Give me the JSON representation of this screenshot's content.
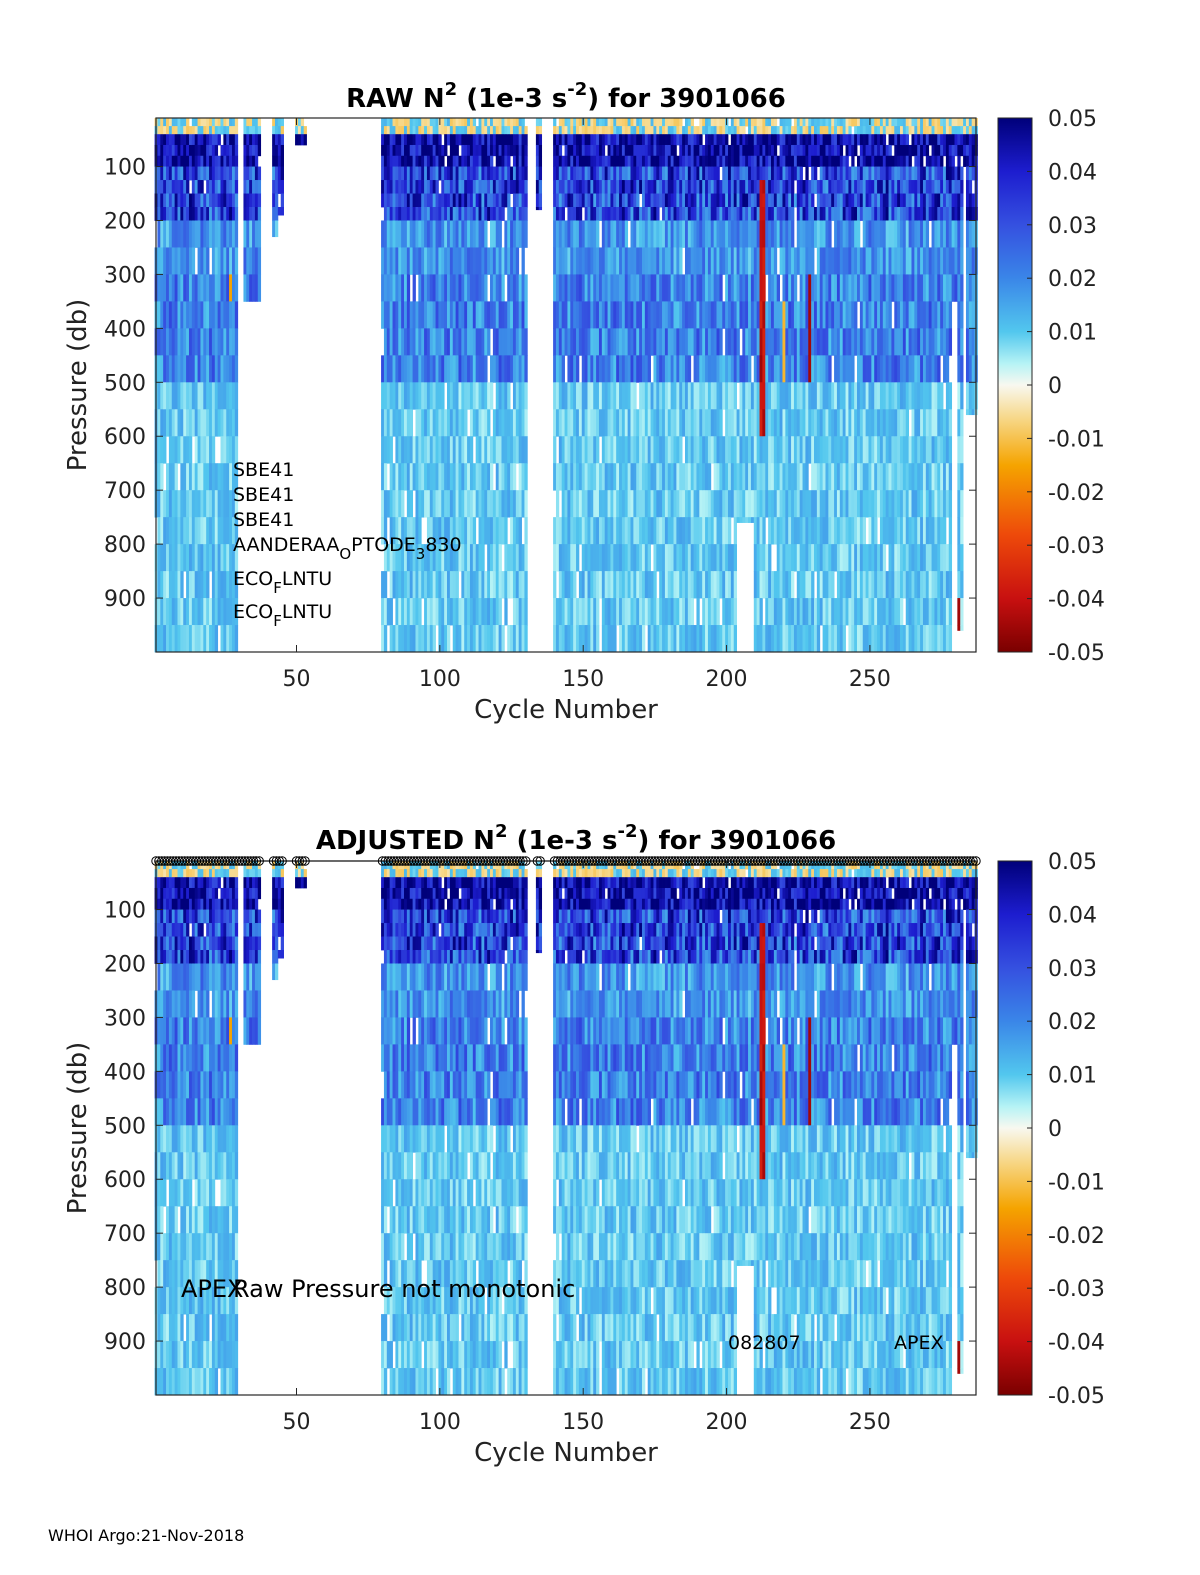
{
  "footer": "WHOI Argo:21-Nov-2018",
  "colorbar": {
    "ticks": [
      "0.05",
      "0.04",
      "0.03",
      "0.02",
      "0.01",
      "0",
      "-0.01",
      "-0.02",
      "-0.03",
      "-0.04",
      "-0.05"
    ],
    "range": [
      -0.05,
      0.05
    ]
  },
  "chart_data": [
    {
      "type": "heatmap",
      "title_prefix": "RAW N",
      "title_sup1": "2",
      "title_mid": " (1e-3 s",
      "title_sup2": "-2",
      "title_suffix": ") for 3901066",
      "xlabel": "Cycle Number",
      "ylabel": "Pressure (db)",
      "xlim": [
        1,
        287
      ],
      "ylim": [
        10,
        1000
      ],
      "xticks": [
        50,
        100,
        150,
        200,
        250
      ],
      "yticks": [
        100,
        200,
        300,
        400,
        500,
        600,
        700,
        800,
        900
      ],
      "clim": [
        -0.05,
        0.05
      ],
      "colormap": "jet-diverging (dark red → yellow → white → cyan → blue → dark navy)",
      "missing_cycles": [
        [
          30,
          31
        ],
        [
          38,
          41
        ],
        [
          46,
          49
        ],
        [
          54,
          79
        ],
        [
          131,
          133
        ],
        [
          136,
          139
        ]
      ],
      "annotations": {
        "l1": "SBE41",
        "l2": "SBE41",
        "l3": "SBE41",
        "l4_a": "AANDERAA",
        "l4_b": "O",
        "l4_c": "PTODE",
        "l4_d": "3",
        "l4_e": "830",
        "l5_a": "ECO",
        "l5_b": "F",
        "l5_c": "LNTU",
        "l6_a": "ECO",
        "l6_b": "F",
        "l6_c": "LNTU"
      }
    },
    {
      "type": "heatmap",
      "title_prefix": "ADJUSTED N",
      "title_sup1": "2",
      "title_mid": " (1e-3 s",
      "title_sup2": "-2",
      "title_suffix": ") for 3901066",
      "xlabel": "Cycle Number",
      "ylabel": "Pressure (db)",
      "xlim": [
        1,
        287
      ],
      "ylim": [
        10,
        1000
      ],
      "xticks": [
        50,
        100,
        150,
        200,
        250
      ],
      "yticks": [
        100,
        200,
        300,
        400,
        500,
        600,
        700,
        800,
        900
      ],
      "clim": [
        -0.05,
        0.05
      ],
      "markers": "open circles at top marking flagged profiles",
      "annotations": {
        "a1": "APEX",
        "a2": "Raw Pressure not monotonic",
        "a3": "082807",
        "a4": "APEX"
      }
    }
  ]
}
